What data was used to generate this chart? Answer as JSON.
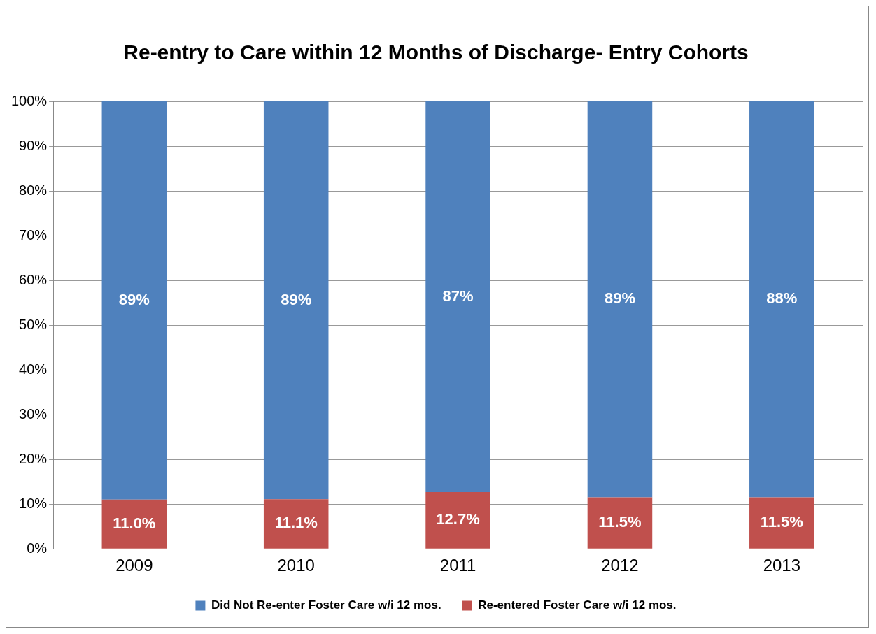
{
  "chart_data": {
    "type": "bar",
    "title": "Re-entry to Care within 12 Months of Discharge- Entry Cohorts",
    "categories": [
      "2009",
      "2010",
      "2011",
      "2012",
      "2013"
    ],
    "stacked": true,
    "series": [
      {
        "name": "Re-entered Foster Care w/i 12 mos.",
        "color": "#c0504d",
        "values": [
          11.0,
          11.1,
          12.7,
          11.5,
          11.5
        ],
        "value_labels": [
          "11.0%",
          "11.1%",
          "12.7%",
          "11.5%",
          "11.5%"
        ]
      },
      {
        "name": "Did Not Re-enter Foster Care w/i 12 mos.",
        "color": "#4f81bd",
        "values": [
          89.0,
          88.9,
          87.3,
          88.5,
          88.5
        ],
        "value_labels": [
          "89%",
          "89%",
          "87%",
          "89%",
          "88%"
        ]
      }
    ],
    "ylim": [
      0,
      100
    ],
    "yticks": [
      {
        "value": 0,
        "label": "0%"
      },
      {
        "value": 10,
        "label": "10%"
      },
      {
        "value": 20,
        "label": "20%"
      },
      {
        "value": 30,
        "label": "30%"
      },
      {
        "value": 40,
        "label": "40%"
      },
      {
        "value": 50,
        "label": "50%"
      },
      {
        "value": 60,
        "label": "60%"
      },
      {
        "value": 70,
        "label": "70%"
      },
      {
        "value": 80,
        "label": "80%"
      },
      {
        "value": 90,
        "label": "90%"
      },
      {
        "value": 100,
        "label": "100%"
      }
    ],
    "grid": "y",
    "legend": "bottom"
  }
}
